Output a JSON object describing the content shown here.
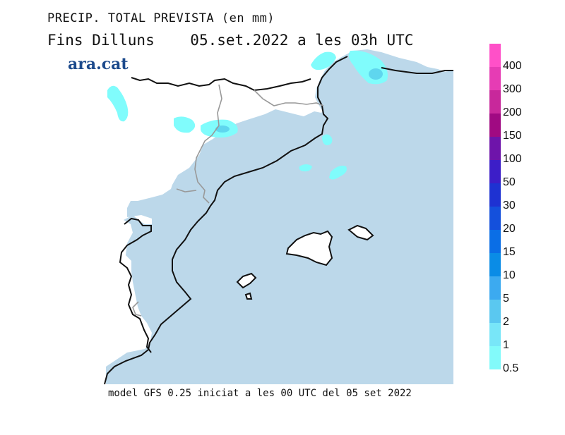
{
  "title": {
    "line1": "PRECIP. TOTAL PREVISTA (en mm)",
    "line2_day": "Fins Dilluns",
    "line2_date": "05.set.2022 a les 03h UTC"
  },
  "logo": {
    "text": "ara.cat"
  },
  "footer": {
    "text": "model GFS 0.25 iniciat a les 00 UTC del 05 set 2022"
  },
  "map": {
    "sea_color": "#bcd8ea",
    "land_color": "#ffffff",
    "coast_color": "#111111",
    "border_color": "#999999",
    "precip_light_color": "#80fcfc",
    "precip_medium_color": "#5fd6ee"
  },
  "legend": {
    "levels": [
      {
        "label": "400",
        "color": "#ff50c8"
      },
      {
        "label": "300",
        "color": "#e63cb4"
      },
      {
        "label": "200",
        "color": "#c8289b"
      },
      {
        "label": "150",
        "color": "#a00a82"
      },
      {
        "label": "100",
        "color": "#6e14aa"
      },
      {
        "label": "50",
        "color": "#3c1ec8"
      },
      {
        "label": "30",
        "color": "#1e32d2"
      },
      {
        "label": "20",
        "color": "#1450dc"
      },
      {
        "label": "15",
        "color": "#0a6ee6"
      },
      {
        "label": "10",
        "color": "#0a8ce6"
      },
      {
        "label": "5",
        "color": "#3caaf0"
      },
      {
        "label": "2",
        "color": "#5ac8f0"
      },
      {
        "label": "1",
        "color": "#78e6f8"
      },
      {
        "label": "0.5",
        "color": "#82fafa"
      }
    ]
  }
}
